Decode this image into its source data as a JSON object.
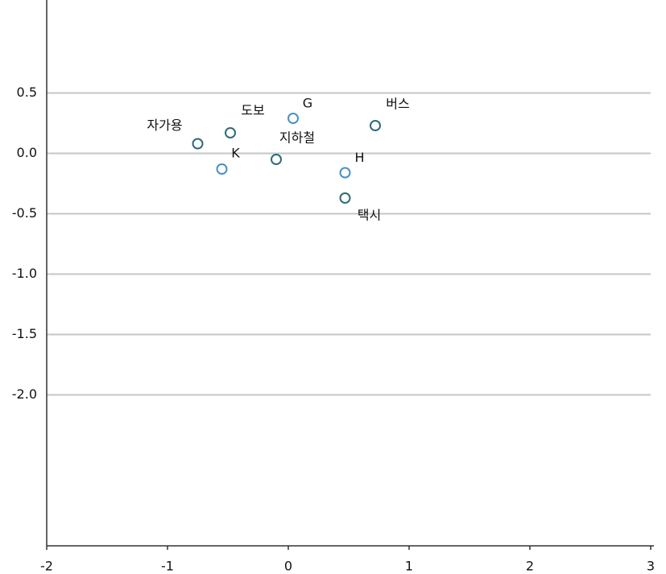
{
  "chart_data": {
    "type": "scatter",
    "xlim": [
      -2,
      3
    ],
    "xticks": [
      -2,
      -1,
      0,
      1,
      2,
      3
    ],
    "ylim": [
      -3.25,
      1.27
    ],
    "yticks": [
      0.5,
      {
        "value": 0,
        "label": "0.0"
      },
      -0.5,
      {
        "value": -1,
        "label": "-1.0"
      },
      -1.5,
      {
        "value": -2,
        "label": "-2.0"
      }
    ],
    "grid": true,
    "series": [
      {
        "color": "#2e6b78",
        "point_labels": [
          "자가용",
          "도보",
          "지하철",
          "버스",
          "택시"
        ],
        "x": [
          -0.75,
          -0.48,
          -0.1,
          0.72,
          0.47
        ],
        "values": [
          0.08,
          0.17,
          -0.05,
          0.23,
          -0.37
        ]
      },
      {
        "color": "#4a90c2",
        "point_labels": [
          "G",
          "K",
          "H"
        ],
        "x": [
          0.04,
          -0.55,
          0.47
        ],
        "values": [
          0.29,
          -0.13,
          -0.16
        ]
      }
    ]
  }
}
